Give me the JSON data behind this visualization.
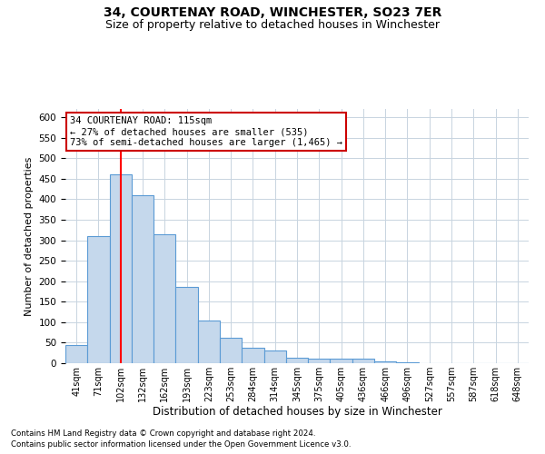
{
  "title": "34, COURTENAY ROAD, WINCHESTER, SO23 7ER",
  "subtitle": "Size of property relative to detached houses in Winchester",
  "xlabel": "Distribution of detached houses by size in Winchester",
  "ylabel": "Number of detached properties",
  "categories": [
    "41sqm",
    "71sqm",
    "102sqm",
    "132sqm",
    "162sqm",
    "193sqm",
    "223sqm",
    "253sqm",
    "284sqm",
    "314sqm",
    "345sqm",
    "375sqm",
    "405sqm",
    "436sqm",
    "466sqm",
    "496sqm",
    "527sqm",
    "557sqm",
    "587sqm",
    "618sqm",
    "648sqm"
  ],
  "bar_values": [
    45,
    310,
    460,
    410,
    315,
    185,
    105,
    63,
    37,
    30,
    13,
    10,
    10,
    10,
    5,
    3,
    1,
    1,
    0,
    0,
    0
  ],
  "bar_color": "#c5d8ec",
  "bar_edge_color": "#5b9bd5",
  "red_line_x": 2,
  "ylim": [
    0,
    620
  ],
  "yticks": [
    0,
    50,
    100,
    150,
    200,
    250,
    300,
    350,
    400,
    450,
    500,
    550,
    600
  ],
  "annotation_line1": "34 COURTENAY ROAD: 115sqm",
  "annotation_line2": "← 27% of detached houses are smaller (535)",
  "annotation_line3": "73% of semi-detached houses are larger (1,465) →",
  "annotation_box_color": "#ffffff",
  "annotation_box_edge": "#cc0000",
  "footnote1": "Contains HM Land Registry data © Crown copyright and database right 2024.",
  "footnote2": "Contains public sector information licensed under the Open Government Licence v3.0.",
  "background_color": "#ffffff",
  "grid_color": "#c8d4e0",
  "title_fontsize": 10,
  "subtitle_fontsize": 9
}
